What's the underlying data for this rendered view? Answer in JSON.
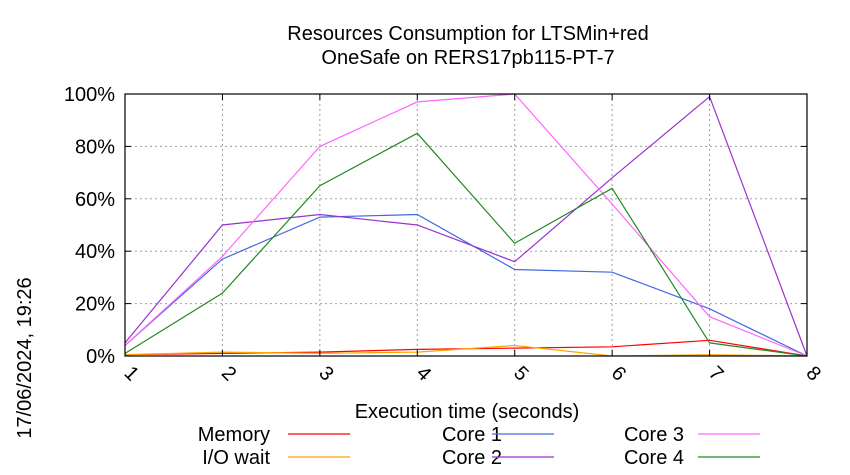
{
  "chart_data": {
    "type": "line",
    "title": [
      "Resources Consumption for LTSMin+red",
      "OneSafe on RERS17pb115-PT-7"
    ],
    "xlabel": "Execution time (seconds)",
    "ylabel": "",
    "timestamp": "17/06/2024, 19:26",
    "xlim": [
      1,
      8
    ],
    "ylim": [
      0,
      100
    ],
    "x_ticks": [
      "1",
      "2",
      "3",
      "4",
      "5",
      "6",
      "7",
      "8"
    ],
    "y_ticks": [
      "0%",
      "20%",
      "40%",
      "60%",
      "80%",
      "100%"
    ],
    "grid": true,
    "legend_position": "bottom",
    "x": [
      1,
      2,
      3,
      4,
      5,
      6,
      7,
      8
    ],
    "series": [
      {
        "name": "Memory",
        "color": "#ff0000",
        "values": [
          0.5,
          1,
          1.5,
          2.5,
          3,
          3.5,
          6,
          0
        ]
      },
      {
        "name": "I/O wait",
        "color": "#ffa500",
        "values": [
          0.5,
          1.5,
          1,
          1.5,
          4,
          0,
          0.5,
          0
        ]
      },
      {
        "name": "Core 1",
        "color": "#4169e1",
        "values": [
          4,
          37,
          53,
          54,
          33,
          32,
          18,
          0
        ]
      },
      {
        "name": "Core 2",
        "color": "#9932cc",
        "values": [
          5,
          50,
          54,
          50,
          36,
          68,
          99,
          0
        ]
      },
      {
        "name": "Core 3",
        "color": "#ff66ff",
        "values": [
          4,
          38,
          80,
          97,
          100,
          58,
          15,
          0
        ]
      },
      {
        "name": "Core 4",
        "color": "#228b22",
        "values": [
          1,
          24,
          65,
          85,
          43,
          64,
          5,
          0
        ]
      }
    ]
  }
}
